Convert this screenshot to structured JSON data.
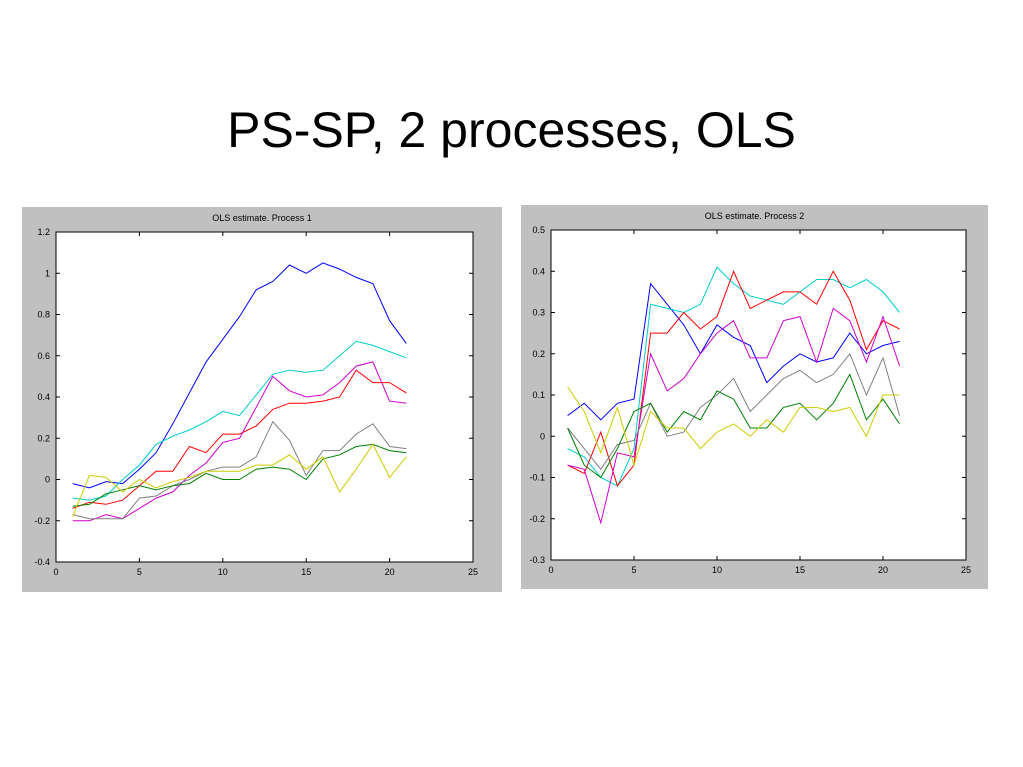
{
  "slide": {
    "title": "PS-SP, 2 processes, OLS"
  },
  "chart_data": [
    {
      "type": "line",
      "title": "OLS estimate. Process 1",
      "xlabel": "",
      "ylabel": "",
      "xlim": [
        0,
        25
      ],
      "ylim": [
        -0.4,
        1.2
      ],
      "xticks": [
        0,
        5,
        10,
        15,
        20,
        25
      ],
      "yticks": [
        -0.4,
        -0.2,
        0,
        0.2,
        0.4,
        0.6,
        0.8,
        1,
        1.2
      ],
      "xtick_labels": [
        "0",
        "5",
        "10",
        "15",
        "20",
        "25"
      ],
      "ytick_labels": [
        "-0.4",
        "-0.2",
        "0",
        "0.2",
        "0.4",
        "0.6",
        "0.8",
        "1",
        "1.2"
      ],
      "grid": false,
      "x": [
        1,
        2,
        3,
        4,
        5,
        6,
        7,
        8,
        9,
        10,
        11,
        12,
        13,
        14,
        15,
        16,
        17,
        18,
        19,
        20,
        21
      ],
      "series": [
        {
          "color": "#0000ff",
          "values": [
            -0.02,
            -0.04,
            -0.01,
            -0.02,
            0.05,
            0.13,
            0.27,
            0.42,
            0.57,
            0.68,
            0.79,
            0.92,
            0.96,
            1.04,
            1.0,
            1.05,
            1.02,
            0.98,
            0.95,
            0.77,
            0.66
          ]
        },
        {
          "color": "#00cccc",
          "values": [
            -0.09,
            -0.1,
            -0.08,
            0.0,
            0.07,
            0.17,
            0.21,
            0.24,
            0.28,
            0.33,
            0.31,
            0.41,
            0.51,
            0.53,
            0.52,
            0.53,
            0.6,
            0.67,
            0.65,
            0.62,
            0.59
          ]
        },
        {
          "color": "#ff0000",
          "values": [
            -0.14,
            -0.11,
            -0.12,
            -0.1,
            -0.03,
            0.04,
            0.04,
            0.16,
            0.13,
            0.22,
            0.22,
            0.26,
            0.34,
            0.37,
            0.37,
            0.38,
            0.4,
            0.53,
            0.47,
            0.47,
            0.42
          ]
        },
        {
          "color": "#cc00cc",
          "values": [
            -0.2,
            -0.2,
            -0.17,
            -0.19,
            -0.14,
            -0.09,
            -0.06,
            0.02,
            0.08,
            0.18,
            0.2,
            0.35,
            0.5,
            0.43,
            0.4,
            0.41,
            0.47,
            0.55,
            0.57,
            0.38,
            0.37
          ]
        },
        {
          "color": "#808080",
          "values": [
            -0.17,
            -0.19,
            -0.19,
            -0.19,
            -0.09,
            -0.08,
            -0.03,
            0.0,
            0.04,
            0.06,
            0.06,
            0.11,
            0.28,
            0.19,
            0.02,
            0.14,
            0.14,
            0.22,
            0.27,
            0.16,
            0.15
          ]
        },
        {
          "color": "#008000",
          "values": [
            -0.13,
            -0.12,
            -0.07,
            -0.05,
            -0.03,
            -0.05,
            -0.03,
            -0.02,
            0.03,
            0.0,
            0.0,
            0.05,
            0.06,
            0.05,
            0.0,
            0.1,
            0.12,
            0.16,
            0.17,
            0.14,
            0.13
          ]
        },
        {
          "color": "#cccc00",
          "values": [
            -0.18,
            0.02,
            0.01,
            -0.06,
            0.0,
            -0.04,
            -0.01,
            0.01,
            0.04,
            0.04,
            0.04,
            0.07,
            0.07,
            0.12,
            0.05,
            0.11,
            -0.06,
            0.05,
            0.17,
            0.01,
            0.11
          ]
        }
      ]
    },
    {
      "type": "line",
      "title": "OLS estimate. Process 2",
      "xlabel": "",
      "ylabel": "",
      "xlim": [
        0,
        25
      ],
      "ylim": [
        -0.3,
        0.5
      ],
      "xticks": [
        0,
        5,
        10,
        15,
        20,
        25
      ],
      "yticks": [
        -0.3,
        -0.2,
        -0.1,
        0,
        0.1,
        0.2,
        0.3,
        0.4,
        0.5
      ],
      "xtick_labels": [
        "0",
        "5",
        "10",
        "15",
        "20",
        "25"
      ],
      "ytick_labels": [
        "-0.3",
        "-0.2",
        "-0.1",
        "0",
        "0.1",
        "0.2",
        "0.3",
        "0.4",
        "0.5"
      ],
      "grid": false,
      "x": [
        1,
        2,
        3,
        4,
        5,
        6,
        7,
        8,
        9,
        10,
        11,
        12,
        13,
        14,
        15,
        16,
        17,
        18,
        19,
        20,
        21
      ],
      "series": [
        {
          "color": "#0000ff",
          "values": [
            0.05,
            0.08,
            0.04,
            0.08,
            0.09,
            0.37,
            0.32,
            0.27,
            0.2,
            0.27,
            0.24,
            0.22,
            0.13,
            0.17,
            0.2,
            0.18,
            0.19,
            0.25,
            0.2,
            0.22,
            0.23
          ]
        },
        {
          "color": "#00cccc",
          "values": [
            -0.03,
            -0.05,
            -0.1,
            -0.12,
            -0.03,
            0.32,
            0.31,
            0.3,
            0.32,
            0.41,
            0.37,
            0.34,
            0.33,
            0.32,
            0.35,
            0.38,
            0.38,
            0.36,
            0.38,
            0.35,
            0.3
          ]
        },
        {
          "color": "#ff0000",
          "values": [
            -0.07,
            -0.09,
            0.01,
            -0.12,
            -0.07,
            0.25,
            0.25,
            0.3,
            0.26,
            0.29,
            0.4,
            0.31,
            0.33,
            0.35,
            0.35,
            0.32,
            0.4,
            0.33,
            0.21,
            0.28,
            0.26
          ]
        },
        {
          "color": "#cc00cc",
          "values": [
            -0.07,
            -0.08,
            -0.21,
            -0.04,
            -0.05,
            0.2,
            0.11,
            0.14,
            0.2,
            0.25,
            0.28,
            0.19,
            0.19,
            0.28,
            0.29,
            0.18,
            0.31,
            0.28,
            0.18,
            0.29,
            0.17
          ]
        },
        {
          "color": "#808080",
          "values": [
            0.02,
            -0.03,
            -0.08,
            -0.02,
            -0.01,
            0.08,
            0.0,
            0.01,
            0.07,
            0.1,
            0.14,
            0.06,
            0.1,
            0.14,
            0.16,
            0.13,
            0.15,
            0.2,
            0.1,
            0.19,
            0.05
          ]
        },
        {
          "color": "#008000",
          "values": [
            0.02,
            -0.07,
            -0.1,
            -0.03,
            0.06,
            0.08,
            0.01,
            0.06,
            0.04,
            0.11,
            0.09,
            0.02,
            0.02,
            0.07,
            0.08,
            0.04,
            0.08,
            0.15,
            0.04,
            0.09,
            0.03
          ]
        },
        {
          "color": "#cccc00",
          "values": [
            0.12,
            0.06,
            -0.04,
            0.07,
            -0.07,
            0.06,
            0.02,
            0.02,
            -0.03,
            0.01,
            0.03,
            0.0,
            0.04,
            0.01,
            0.07,
            0.07,
            0.06,
            0.07,
            0.0,
            0.1,
            0.1
          ]
        }
      ]
    }
  ]
}
